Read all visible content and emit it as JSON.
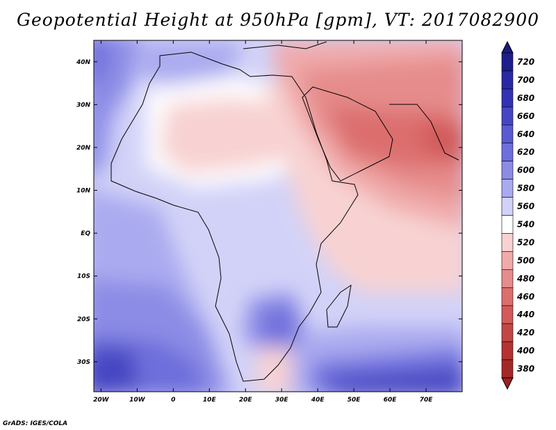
{
  "title": "Geopotential Height at 950hPa [gpm], VT: 2017082900",
  "credit": "GrADS: IGES/COLA",
  "map": {
    "lat_labels": [
      "40N",
      "30N",
      "20N",
      "10N",
      "EQ",
      "10S",
      "20S",
      "30S"
    ],
    "lon_labels": [
      "20W",
      "10W",
      "0",
      "10E",
      "20E",
      "30E",
      "40E",
      "50E",
      "60E",
      "70E"
    ],
    "lon_range": [
      -22,
      80
    ],
    "lat_range": [
      -37,
      45
    ]
  },
  "colorbar": {
    "labels": [
      "720",
      "700",
      "680",
      "660",
      "640",
      "620",
      "600",
      "580",
      "560",
      "540",
      "520",
      "500",
      "480",
      "460",
      "440",
      "420",
      "400",
      "380"
    ],
    "colors": [
      "#1e1e8c",
      "#2828a5",
      "#3232b4",
      "#4646c3",
      "#5a5ad2",
      "#6e6edc",
      "#8c8ce6",
      "#aaaaf0",
      "#d2d2f8",
      "#ffffff",
      "#f8d2d2",
      "#f0aaaa",
      "#e68c8c",
      "#dc6e6e",
      "#d25a5a",
      "#c34646",
      "#b43232",
      "#a52828"
    ]
  }
}
